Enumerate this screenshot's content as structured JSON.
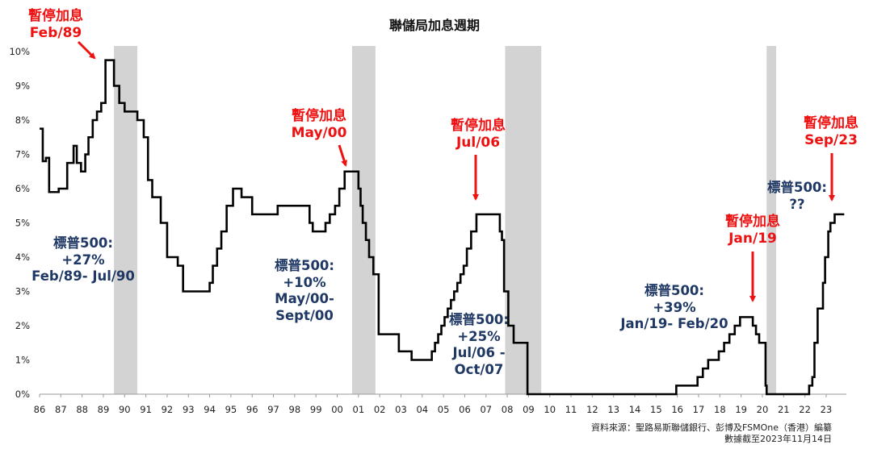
{
  "title": "聯儲局加息週期",
  "source": {
    "line1": "資料來源：聖路易斯聯儲銀行、彭博及FSMOne（香港）編纂",
    "line2": "數據截至2023年11月14日"
  },
  "annotations": {
    "pause_1989": {
      "l1": "暫停加息",
      "l2": "Feb/89"
    },
    "pause_2000": {
      "l1": "暫停加息",
      "l2": "May/00"
    },
    "pause_2006": {
      "l1": "暫停加息",
      "l2": "Jul/06"
    },
    "pause_2019": {
      "l1": "暫停加息",
      "l2": "Jan/19"
    },
    "pause_2023": {
      "l1": "暫停加息",
      "l2": "Sep/23"
    },
    "sp_1989": {
      "l1": "標普500:",
      "l2": "+27%",
      "l3": "Feb/89- Jul/90"
    },
    "sp_2000": {
      "l1": "標普500:",
      "l2": "+10%",
      "l3": "May/00-",
      "l4": "Sept/00"
    },
    "sp_2006": {
      "l1": "標普500:",
      "l2": "+25%",
      "l3": "Jul/06 -",
      "l4": "Oct/07"
    },
    "sp_2019": {
      "l1": "標普500:",
      "l2": "+39%",
      "l3": "Jan/19- Feb/20"
    },
    "sp_2023": {
      "l1": "標普500:",
      "l2": "??"
    }
  },
  "colors": {
    "line": "#000000",
    "recession": "#d3d3d3",
    "pause_text": "#ee1111",
    "sp_text": "#1f3864",
    "axis": "#999999"
  },
  "chart_data": {
    "type": "line",
    "title": "聯儲局加息週期",
    "xlabel": "",
    "ylabel": "",
    "xlim": [
      1986,
      2023.8
    ],
    "ylim": [
      0,
      10
    ],
    "x_ticks": [
      {
        "v": 1986,
        "label": "86"
      },
      {
        "v": 1987,
        "label": "87"
      },
      {
        "v": 1988,
        "label": "88"
      },
      {
        "v": 1989,
        "label": "89"
      },
      {
        "v": 1990,
        "label": "90"
      },
      {
        "v": 1991,
        "label": "91"
      },
      {
        "v": 1992,
        "label": "92"
      },
      {
        "v": 1993,
        "label": "93"
      },
      {
        "v": 1994,
        "label": "94"
      },
      {
        "v": 1995,
        "label": "95"
      },
      {
        "v": 1996,
        "label": "96"
      },
      {
        "v": 1997,
        "label": "97"
      },
      {
        "v": 1998,
        "label": "98"
      },
      {
        "v": 1999,
        "label": "99"
      },
      {
        "v": 2000,
        "label": "00"
      },
      {
        "v": 2001,
        "label": "01"
      },
      {
        "v": 2002,
        "label": "02"
      },
      {
        "v": 2003,
        "label": "03"
      },
      {
        "v": 2004,
        "label": "04"
      },
      {
        "v": 2005,
        "label": "05"
      },
      {
        "v": 2006,
        "label": "06"
      },
      {
        "v": 2007,
        "label": "07"
      },
      {
        "v": 2008,
        "label": "08"
      },
      {
        "v": 2009,
        "label": "09"
      },
      {
        "v": 2010,
        "label": "10"
      },
      {
        "v": 2011,
        "label": "11"
      },
      {
        "v": 2012,
        "label": "12"
      },
      {
        "v": 2013,
        "label": "13"
      },
      {
        "v": 2014,
        "label": "14"
      },
      {
        "v": 2015,
        "label": "15"
      },
      {
        "v": 2016,
        "label": "16"
      },
      {
        "v": 2017,
        "label": "17"
      },
      {
        "v": 2018,
        "label": "18"
      },
      {
        "v": 2019,
        "label": "19"
      },
      {
        "v": 2020,
        "label": "20"
      },
      {
        "v": 2021,
        "label": "21"
      },
      {
        "v": 2022,
        "label": "22"
      },
      {
        "v": 2023,
        "label": "23"
      }
    ],
    "y_ticks": [
      {
        "v": 0,
        "label": "0%"
      },
      {
        "v": 1,
        "label": "1%"
      },
      {
        "v": 2,
        "label": "2%"
      },
      {
        "v": 3,
        "label": "3%"
      },
      {
        "v": 4,
        "label": "4%"
      },
      {
        "v": 5,
        "label": "5%"
      },
      {
        "v": 6,
        "label": "6%"
      },
      {
        "v": 7,
        "label": "7%"
      },
      {
        "v": 8,
        "label": "8%"
      },
      {
        "v": 9,
        "label": "9%"
      },
      {
        "v": 10,
        "label": "10%"
      }
    ],
    "recessions": [
      [
        1989.5,
        1990.6
      ],
      [
        2000.7,
        2001.8
      ],
      [
        2007.9,
        2009.6
      ],
      [
        2020.2,
        2020.65
      ]
    ],
    "series": [
      {
        "x": [
          1986.0,
          1986.15,
          1986.3,
          1986.45,
          1986.6,
          1986.9,
          1987.3,
          1987.6,
          1987.75,
          1987.95,
          1988.15,
          1988.3,
          1988.5,
          1988.7,
          1988.9,
          1989.1,
          1989.5,
          1989.75,
          1990.0,
          1990.6,
          1990.9,
          1991.1,
          1991.3,
          1991.5,
          1991.7,
          1992.0,
          1992.5,
          1992.75,
          1993.0,
          1994.0,
          1994.15,
          1994.35,
          1994.55,
          1994.8,
          1995.1,
          1995.5,
          1996.0,
          1997.2,
          1998.7,
          1998.85,
          1999.45,
          1999.65,
          1999.9,
          2000.1,
          2000.35,
          2001.0,
          2001.1,
          2001.2,
          2001.35,
          2001.5,
          2001.7,
          2001.95,
          2002.9,
          2003.5,
          2004.45,
          2004.6,
          2004.75,
          2004.9,
          2005.05,
          2005.2,
          2005.35,
          2005.5,
          2005.65,
          2005.8,
          2005.95,
          2006.1,
          2006.3,
          2006.55,
          2007.65,
          2007.75,
          2007.85,
          2008.05,
          2008.3,
          2008.95,
          2015.95,
          2016.95,
          2017.2,
          2017.45,
          2017.95,
          2018.2,
          2018.45,
          2018.7,
          2018.95,
          2019.55,
          2019.7,
          2019.85,
          2020.15,
          2020.2,
          2022.2,
          2022.35,
          2022.45,
          2022.6,
          2022.85,
          2022.95,
          2023.1,
          2023.2,
          2023.4,
          2023.55,
          2023.85
        ],
        "y": [
          7.75,
          6.8,
          6.9,
          5.9,
          5.9,
          6.0,
          6.75,
          7.25,
          6.75,
          6.5,
          7.0,
          7.5,
          8.0,
          8.25,
          8.5,
          9.75,
          9.0,
          8.5,
          8.25,
          8.0,
          7.5,
          6.25,
          5.75,
          5.75,
          5.0,
          4.0,
          3.75,
          3.0,
          3.0,
          3.25,
          3.75,
          4.25,
          4.75,
          5.5,
          6.0,
          5.75,
          5.25,
          5.5,
          5.0,
          4.75,
          5.0,
          5.25,
          5.5,
          6.0,
          6.5,
          6.0,
          5.5,
          5.0,
          4.5,
          4.0,
          3.5,
          1.75,
          1.25,
          1.0,
          1.25,
          1.5,
          1.75,
          2.0,
          2.25,
          2.5,
          2.75,
          3.0,
          3.25,
          3.5,
          3.75,
          4.25,
          4.75,
          5.25,
          4.75,
          4.5,
          3.0,
          2.0,
          1.5,
          0.0,
          0.25,
          0.5,
          0.75,
          1.0,
          1.25,
          1.5,
          1.75,
          2.0,
          2.25,
          2.0,
          1.75,
          1.5,
          0.25,
          0.0,
          0.25,
          0.5,
          1.5,
          2.5,
          3.25,
          4.0,
          4.75,
          5.0,
          5.25,
          5.25,
          5.25
        ]
      }
    ]
  }
}
